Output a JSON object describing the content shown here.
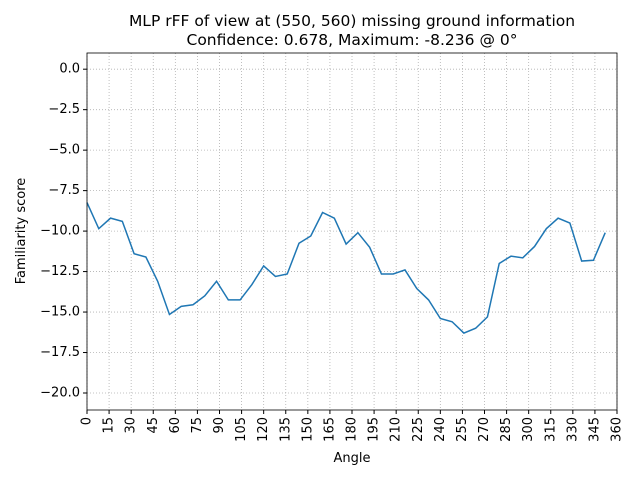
{
  "chart_data": {
    "type": "line",
    "title": "MLP rFF of view at (550, 560) missing ground information",
    "subtitle": "Confidence: 0.678, Maximum: -8.236 @ 0°",
    "x_label": "Angle",
    "y_label": "Familiarity score",
    "x": [
      0,
      8,
      16,
      24,
      32,
      40,
      48,
      56,
      64,
      72,
      80,
      88,
      96,
      104,
      112,
      120,
      128,
      136,
      144,
      152,
      160,
      168,
      176,
      184,
      192,
      200,
      208,
      216,
      224,
      232,
      240,
      248,
      256,
      264,
      272,
      280,
      288,
      296,
      304,
      312,
      320,
      328,
      336,
      344,
      352
    ],
    "series": [
      {
        "name": "score",
        "color": "#1f77b4",
        "values": [
          -8.236,
          -9.85,
          -9.2,
          -9.4,
          -11.4,
          -11.6,
          -13.1,
          -15.15,
          -14.65,
          -14.55,
          -14.0,
          -13.1,
          -14.25,
          -14.25,
          -13.3,
          -12.15,
          -12.8,
          -12.65,
          -10.75,
          -10.3,
          -8.85,
          -9.2,
          -10.8,
          -10.1,
          -11.0,
          -12.65,
          -12.65,
          -12.4,
          -13.55,
          -14.25,
          -15.4,
          -15.6,
          -16.3,
          -16.0,
          -15.3,
          -12.0,
          -11.55,
          -11.65,
          -10.95,
          -9.85,
          -9.2,
          -9.5,
          -11.85,
          -11.8,
          -10.1
        ]
      }
    ],
    "xlim": [
      0,
      360
    ],
    "xticks": [
      0,
      15,
      30,
      45,
      60,
      75,
      90,
      105,
      120,
      135,
      150,
      165,
      180,
      195,
      210,
      225,
      240,
      255,
      270,
      285,
      300,
      315,
      330,
      345,
      360
    ],
    "ylim": [
      -21.05,
      1.0
    ],
    "yticks": [
      {
        "value": 0,
        "label": "0.0"
      },
      {
        "value": -2.5,
        "label": "−2.5"
      },
      {
        "value": -5,
        "label": "−5.0"
      },
      {
        "value": -7.5,
        "label": "−7.5"
      },
      {
        "value": -10,
        "label": "−10.0"
      },
      {
        "value": -12.5,
        "label": "−12.5"
      },
      {
        "value": -15,
        "label": "−15.0"
      },
      {
        "value": -17.5,
        "label": "−17.5"
      },
      {
        "value": -20,
        "label": "−20.0"
      }
    ],
    "grid": true
  }
}
